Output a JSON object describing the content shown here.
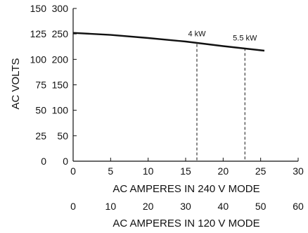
{
  "chart_data": {
    "type": "line",
    "title": "",
    "xlabel": "AC AMPERES IN 240 V MODE",
    "xlabel_secondary": "AC AMPERES IN 120 V MODE",
    "ylabel": "AC VOLTS",
    "xlim": [
      0,
      30
    ],
    "x_ticks": [
      0,
      5,
      10,
      15,
      20,
      25,
      30
    ],
    "x_secondary_ticks": [
      0,
      10,
      20,
      30,
      40,
      50,
      60
    ],
    "ylim": [
      0,
      150
    ],
    "y_ticks": [
      0,
      25,
      50,
      75,
      100,
      125,
      150
    ],
    "y_secondary_ticks": [
      0,
      50,
      100,
      150,
      200,
      250,
      300
    ],
    "grid": false,
    "series": [
      {
        "name": "",
        "x": [
          0,
          5,
          10,
          15,
          20,
          25.5
        ],
        "y": [
          126,
          124,
          121,
          117.5,
          113,
          108.5
        ]
      }
    ],
    "annotations": [
      {
        "label": "4 kW",
        "x": 16.5,
        "y_top": 115
      },
      {
        "label": "5.5 kW",
        "x": 22.9,
        "y_top": 111
      }
    ]
  }
}
